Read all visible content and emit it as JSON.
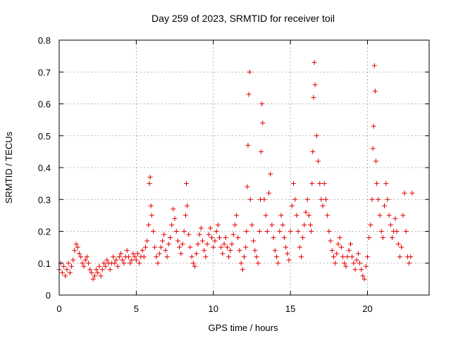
{
  "chart_data": {
    "type": "scatter",
    "title": "Day 259 of 2023, SRMTID for receiver toil",
    "xlabel": "GPS time / hours",
    "ylabel": "SRMTID / TECUs",
    "xlim": [
      0,
      24
    ],
    "ylim": [
      0,
      0.8
    ],
    "xticks": [
      "0",
      "5",
      "10",
      "15",
      "20"
    ],
    "xtick_values": [
      0,
      5,
      10,
      15,
      20
    ],
    "yticks": [
      "0",
      "0.1",
      "0.2",
      "0.3",
      "0.4",
      "0.5",
      "0.6",
      "0.7",
      "0.8"
    ],
    "ytick_values": [
      0,
      0.1,
      0.2,
      0.3,
      0.4,
      0.5,
      0.6,
      0.7,
      0.8
    ],
    "grid": true,
    "marker": "+",
    "color": "#e00000",
    "series": [
      {
        "name": "SRMTID",
        "x": [
          0.0,
          0.1,
          0.2,
          0.3,
          0.4,
          0.5,
          0.6,
          0.7,
          0.8,
          0.9,
          1.0,
          1.1,
          1.2,
          1.3,
          1.4,
          1.5,
          1.6,
          1.7,
          1.8,
          1.9,
          2.0,
          2.1,
          2.2,
          2.3,
          2.4,
          2.5,
          2.6,
          2.7,
          2.8,
          2.9,
          3.0,
          3.1,
          3.2,
          3.3,
          3.4,
          3.5,
          3.6,
          3.7,
          3.8,
          3.9,
          4.0,
          4.1,
          4.2,
          4.3,
          4.4,
          4.5,
          4.6,
          4.7,
          4.8,
          4.9,
          5.0,
          5.1,
          5.2,
          5.3,
          5.4,
          5.5,
          5.6,
          5.7,
          5.8,
          5.85,
          5.9,
          5.95,
          6.0,
          6.1,
          6.2,
          6.3,
          6.4,
          6.5,
          6.6,
          6.7,
          6.8,
          6.9,
          7.0,
          7.1,
          7.2,
          7.3,
          7.4,
          7.5,
          7.6,
          7.7,
          7.8,
          7.9,
          8.0,
          8.1,
          8.2,
          8.25,
          8.3,
          8.4,
          8.5,
          8.6,
          8.7,
          8.8,
          8.9,
          9.0,
          9.1,
          9.2,
          9.3,
          9.4,
          9.5,
          9.6,
          9.7,
          9.8,
          9.9,
          10.0,
          10.1,
          10.2,
          10.3,
          10.4,
          10.5,
          10.6,
          10.7,
          10.8,
          10.9,
          11.0,
          11.1,
          11.2,
          11.3,
          11.4,
          11.5,
          11.6,
          11.7,
          11.8,
          11.9,
          12.0,
          12.1,
          12.15,
          12.2,
          12.25,
          12.3,
          12.35,
          12.4,
          12.5,
          12.6,
          12.7,
          12.8,
          12.9,
          13.0,
          13.05,
          13.1,
          13.15,
          13.2,
          13.3,
          13.4,
          13.5,
          13.6,
          13.7,
          13.8,
          13.9,
          14.0,
          14.1,
          14.2,
          14.3,
          14.4,
          14.5,
          14.6,
          14.7,
          14.8,
          14.9,
          15.0,
          15.1,
          15.2,
          15.3,
          15.4,
          15.5,
          15.6,
          15.7,
          15.8,
          15.9,
          16.0,
          16.1,
          16.2,
          16.3,
          16.35,
          16.4,
          16.45,
          16.5,
          16.55,
          16.6,
          16.7,
          16.8,
          16.9,
          17.0,
          17.1,
          17.2,
          17.3,
          17.4,
          17.5,
          17.6,
          17.7,
          17.8,
          17.9,
          18.0,
          18.1,
          18.2,
          18.3,
          18.4,
          18.5,
          18.6,
          18.7,
          18.8,
          18.9,
          19.0,
          19.1,
          19.2,
          19.3,
          19.4,
          19.5,
          19.6,
          19.7,
          19.8,
          19.9,
          20.0,
          20.1,
          20.2,
          20.3,
          20.35,
          20.4,
          20.45,
          20.5,
          20.55,
          20.6,
          20.7,
          20.8,
          20.9,
          21.0,
          21.1,
          21.2,
          21.3,
          21.4,
          21.5,
          21.6,
          21.7,
          21.8,
          21.9,
          22.0,
          22.1,
          22.2,
          22.3,
          22.4,
          22.5,
          22.6,
          22.7,
          22.8,
          22.9
        ],
        "y": [
          0.08,
          0.1,
          0.07,
          0.09,
          0.06,
          0.08,
          0.1,
          0.07,
          0.09,
          0.11,
          0.14,
          0.16,
          0.15,
          0.13,
          0.12,
          0.1,
          0.09,
          0.11,
          0.12,
          0.1,
          0.08,
          0.07,
          0.05,
          0.06,
          0.08,
          0.07,
          0.09,
          0.06,
          0.08,
          0.1,
          0.09,
          0.11,
          0.1,
          0.08,
          0.1,
          0.12,
          0.1,
          0.11,
          0.09,
          0.12,
          0.13,
          0.11,
          0.1,
          0.12,
          0.14,
          0.12,
          0.1,
          0.11,
          0.13,
          0.12,
          0.11,
          0.13,
          0.1,
          0.12,
          0.14,
          0.12,
          0.15,
          0.17,
          0.22,
          0.35,
          0.37,
          0.28,
          0.25,
          0.2,
          0.15,
          0.12,
          0.1,
          0.13,
          0.15,
          0.17,
          0.19,
          0.14,
          0.12,
          0.16,
          0.18,
          0.22,
          0.27,
          0.24,
          0.2,
          0.17,
          0.15,
          0.13,
          0.16,
          0.2,
          0.25,
          0.35,
          0.28,
          0.19,
          0.15,
          0.12,
          0.1,
          0.09,
          0.13,
          0.16,
          0.19,
          0.21,
          0.17,
          0.14,
          0.12,
          0.16,
          0.19,
          0.21,
          0.18,
          0.15,
          0.17,
          0.2,
          0.22,
          0.18,
          0.15,
          0.13,
          0.16,
          0.18,
          0.15,
          0.12,
          0.14,
          0.16,
          0.19,
          0.22,
          0.25,
          0.18,
          0.14,
          0.1,
          0.08,
          0.12,
          0.15,
          0.2,
          0.34,
          0.47,
          0.63,
          0.7,
          0.3,
          0.22,
          0.17,
          0.14,
          0.12,
          0.1,
          0.2,
          0.3,
          0.45,
          0.6,
          0.54,
          0.3,
          0.25,
          0.2,
          0.32,
          0.38,
          0.22,
          0.18,
          0.14,
          0.12,
          0.1,
          0.2,
          0.25,
          0.22,
          0.18,
          0.15,
          0.13,
          0.11,
          0.2,
          0.28,
          0.35,
          0.3,
          0.25,
          0.2,
          0.15,
          0.12,
          0.18,
          0.22,
          0.26,
          0.3,
          0.25,
          0.22,
          0.2,
          0.35,
          0.45,
          0.62,
          0.73,
          0.66,
          0.5,
          0.42,
          0.35,
          0.3,
          0.28,
          0.35,
          0.3,
          0.25,
          0.2,
          0.17,
          0.14,
          0.12,
          0.1,
          0.13,
          0.16,
          0.18,
          0.15,
          0.12,
          0.1,
          0.09,
          0.12,
          0.14,
          0.16,
          0.12,
          0.1,
          0.08,
          0.11,
          0.13,
          0.1,
          0.08,
          0.06,
          0.05,
          0.09,
          0.12,
          0.18,
          0.22,
          0.3,
          0.46,
          0.53,
          0.72,
          0.64,
          0.42,
          0.35,
          0.3,
          0.25,
          0.2,
          0.18,
          0.28,
          0.35,
          0.3,
          0.25,
          0.22,
          0.18,
          0.2,
          0.24,
          0.2,
          0.16,
          0.12,
          0.15,
          0.25,
          0.32,
          0.2,
          0.12,
          0.1,
          0.12,
          0.32
        ]
      }
    ]
  }
}
